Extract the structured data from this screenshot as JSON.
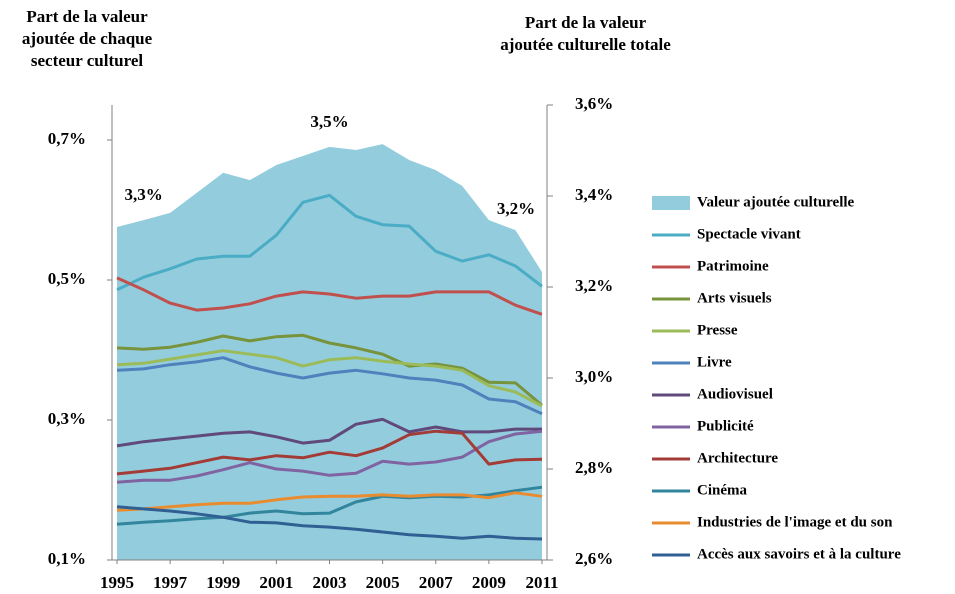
{
  "chart_data": {
    "type": "line",
    "y_title": "Part de la valeur ajoutée de chaque secteur culturel",
    "y2_title": "Part de la valeur ajoutée culturelle totale",
    "x": [
      1995,
      1996,
      1997,
      1998,
      1999,
      2000,
      2001,
      2002,
      2003,
      2004,
      2005,
      2006,
      2007,
      2008,
      2009,
      2010,
      2011
    ],
    "xlim": [
      1995,
      2011
    ],
    "xticks": [
      1995,
      1997,
      1999,
      2001,
      2003,
      2005,
      2007,
      2009,
      2011
    ],
    "ylim": [
      0.1,
      0.75
    ],
    "yticks": [
      {
        "value": 0.1,
        "label": "0,1%"
      },
      {
        "value": 0.3,
        "label": "0,3%"
      },
      {
        "value": 0.5,
        "label": "0,5%"
      },
      {
        "value": 0.7,
        "label": "0,7%"
      }
    ],
    "y2lim": [
      2.6,
      3.6
    ],
    "y2ticks": [
      {
        "value": 2.6,
        "label": "2,6%"
      },
      {
        "value": 2.8,
        "label": "2,8%"
      },
      {
        "value": 3.0,
        "label": "3,0%"
      },
      {
        "value": 3.2,
        "label": "3,2%"
      },
      {
        "value": 3.4,
        "label": "3,4%"
      },
      {
        "value": 3.6,
        "label": "3,6%"
      }
    ],
    "legend": "right",
    "series": [
      {
        "name": "Valeur ajoutée culturelle",
        "type": "area",
        "axis": "y2",
        "color": "#93cddd",
        "values": [
          3.332,
          3.347,
          3.363,
          3.407,
          3.451,
          3.435,
          3.468,
          3.488,
          3.508,
          3.501,
          3.514,
          3.479,
          3.457,
          3.422,
          3.347,
          3.325,
          3.233
        ],
        "value_labels": [
          null,
          "3,3%",
          null,
          null,
          null,
          null,
          null,
          null,
          "3,5%",
          null,
          null,
          null,
          null,
          null,
          null,
          null,
          "3,2%"
        ]
      },
      {
        "name": "Spectacle vivant",
        "color": "#4bacc6",
        "values": [
          0.486,
          0.504,
          0.516,
          0.53,
          0.534,
          0.534,
          0.564,
          0.611,
          0.621,
          0.591,
          0.579,
          0.577,
          0.541,
          0.527,
          0.536,
          0.52,
          0.491
        ]
      },
      {
        "name": "Patrimoine",
        "color": "#c0504d",
        "values": [
          0.503,
          0.486,
          0.467,
          0.457,
          0.46,
          0.466,
          0.477,
          0.483,
          0.48,
          0.474,
          0.477,
          0.477,
          0.483,
          0.483,
          0.483,
          0.464,
          0.451
        ]
      },
      {
        "name": "Arts visuels",
        "color": "#77933c",
        "values": [
          0.403,
          0.401,
          0.404,
          0.411,
          0.42,
          0.413,
          0.419,
          0.421,
          0.41,
          0.403,
          0.394,
          0.377,
          0.38,
          0.374,
          0.354,
          0.353,
          0.321
        ]
      },
      {
        "name": "Presse",
        "color": "#9bbb59",
        "values": [
          0.379,
          0.381,
          0.387,
          0.393,
          0.399,
          0.394,
          0.389,
          0.377,
          0.386,
          0.389,
          0.384,
          0.38,
          0.377,
          0.371,
          0.349,
          0.34,
          0.32
        ]
      },
      {
        "name": "Livre",
        "color": "#4f81bd",
        "values": [
          0.371,
          0.373,
          0.379,
          0.383,
          0.389,
          0.376,
          0.367,
          0.36,
          0.367,
          0.371,
          0.366,
          0.36,
          0.357,
          0.35,
          0.33,
          0.326,
          0.309
        ]
      },
      {
        "name": "Audiovisuel",
        "color": "#604a7b",
        "values": [
          0.263,
          0.269,
          0.273,
          0.277,
          0.281,
          0.283,
          0.276,
          0.267,
          0.271,
          0.294,
          0.301,
          0.283,
          0.29,
          0.283,
          0.283,
          0.287,
          0.287
        ]
      },
      {
        "name": "Publicité",
        "color": "#8064a2",
        "values": [
          0.211,
          0.214,
          0.214,
          0.22,
          0.229,
          0.239,
          0.23,
          0.227,
          0.221,
          0.224,
          0.241,
          0.237,
          0.24,
          0.247,
          0.269,
          0.28,
          0.284
        ]
      },
      {
        "name": "Architecture",
        "color": "#a33b37",
        "values": [
          0.223,
          0.227,
          0.231,
          0.239,
          0.247,
          0.243,
          0.249,
          0.246,
          0.254,
          0.249,
          0.26,
          0.279,
          0.284,
          0.281,
          0.237,
          0.243,
          0.244
        ]
      },
      {
        "name": "Cinéma",
        "color": "#31859c",
        "values": [
          0.151,
          0.154,
          0.156,
          0.159,
          0.161,
          0.167,
          0.17,
          0.166,
          0.167,
          0.183,
          0.191,
          0.189,
          0.191,
          0.19,
          0.193,
          0.199,
          0.204
        ]
      },
      {
        "name": "Industries de l'image et du son",
        "color": "#e98b2f",
        "values": [
          0.171,
          0.173,
          0.176,
          0.179,
          0.181,
          0.181,
          0.186,
          0.19,
          0.191,
          0.191,
          0.193,
          0.191,
          0.193,
          0.193,
          0.189,
          0.196,
          0.191
        ]
      },
      {
        "name": "Accès aux savoirs et à la culture",
        "color": "#2f5f93",
        "values": [
          0.176,
          0.173,
          0.17,
          0.166,
          0.161,
          0.154,
          0.153,
          0.149,
          0.147,
          0.144,
          0.14,
          0.136,
          0.134,
          0.131,
          0.134,
          0.131,
          0.13
        ]
      }
    ]
  }
}
